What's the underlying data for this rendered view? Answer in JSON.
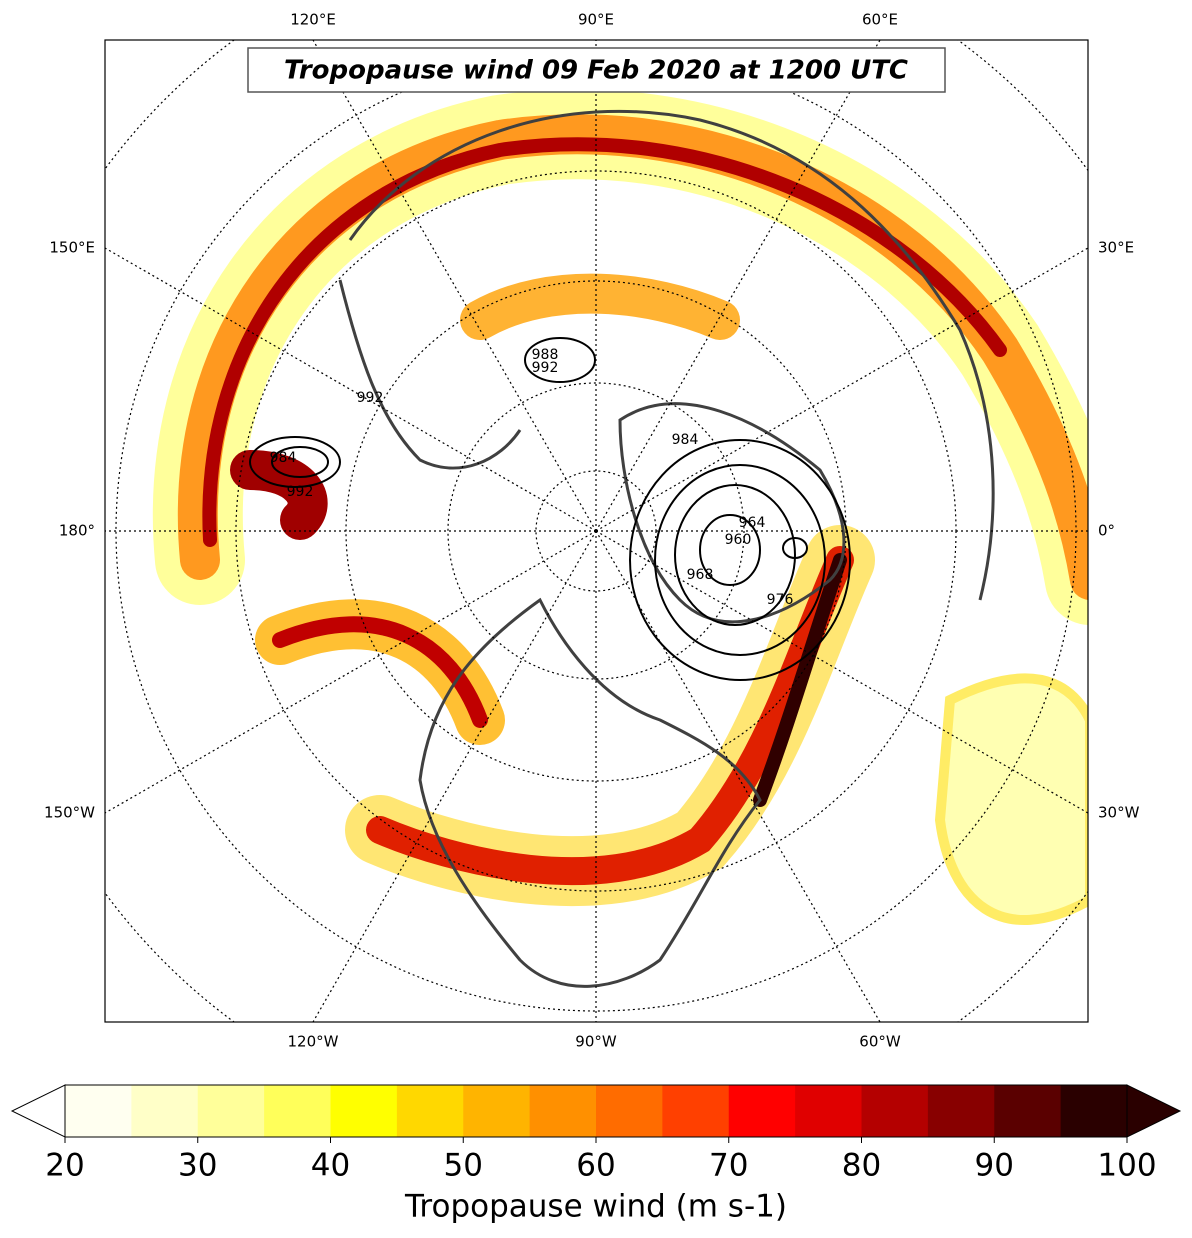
{
  "title": "Tropopause wind 09 Feb 2020 at 1200 UTC",
  "longitude_labels": {
    "top": [
      "120°E",
      "90°E",
      "60°E"
    ],
    "left": [
      "150°E",
      "180°",
      "150°W"
    ],
    "right": [
      "30°E",
      "0°",
      "30°W"
    ],
    "bottom": [
      "120°W",
      "90°W",
      "60°W"
    ]
  },
  "contour_labels": [
    "984",
    "992",
    "988",
    "992",
    "992",
    "984",
    "960",
    "964",
    "976",
    "968"
  ],
  "colorbar": {
    "label": "Tropopause wind (m s-1)",
    "range": [
      20,
      100
    ],
    "ticks": [
      20,
      30,
      40,
      50,
      60,
      70,
      80,
      90,
      100
    ],
    "colors": [
      "#fffff0",
      "#ffffc8",
      "#ffff9a",
      "#ffff5a",
      "#ffff00",
      "#ffd800",
      "#ffb400",
      "#ff9000",
      "#ff6c00",
      "#ff4000",
      "#ff0000",
      "#e00000",
      "#b40000",
      "#880000",
      "#5a0000",
      "#2a0000"
    ]
  }
}
